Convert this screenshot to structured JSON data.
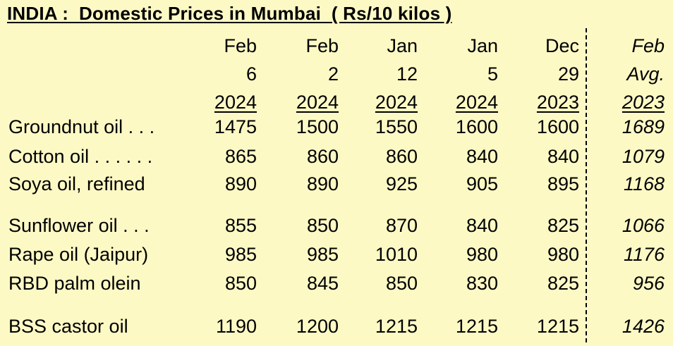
{
  "title": "INDIA :  Domestic Prices in Mumbai  ( Rs/10 kilos )",
  "columns": [
    {
      "l1": "Feb",
      "l2": "6",
      "l3": "2024"
    },
    {
      "l1": "Feb",
      "l2": "2",
      "l3": "2024"
    },
    {
      "l1": "Jan",
      "l2": "12",
      "l3": "2024"
    },
    {
      "l1": "Jan",
      "l2": "5",
      "l3": "2024"
    },
    {
      "l1": "Dec",
      "l2": "29",
      "l3": "2023"
    },
    {
      "l1": "Feb",
      "l2": "Avg.",
      "l3": "2023"
    }
  ],
  "rows": [
    {
      "label": "Groundnut oil . . .",
      "values": [
        "1475",
        "1500",
        "1550",
        "1600",
        "1600",
        "1689"
      ]
    },
    {
      "label": "Cotton oil . . . . . .",
      "values": [
        "865",
        "860",
        "860",
        "840",
        "840",
        "1079"
      ]
    },
    {
      "label": "Soya oil, refined",
      "values": [
        "890",
        "890",
        "925",
        "905",
        "895",
        "1168"
      ]
    },
    {
      "label": "Sunflower oil . . .",
      "values": [
        "855",
        "850",
        "870",
        "840",
        "825",
        "1066"
      ]
    },
    {
      "label": "Rape oil (Jaipur)",
      "values": [
        "985",
        "985",
        "1010",
        "980",
        "980",
        "1176"
      ]
    },
    {
      "label": "RBD palm olein",
      "values": [
        "850",
        "845",
        "850",
        "830",
        "825",
        "956"
      ]
    },
    {
      "label": "BSS castor oil",
      "values": [
        "1190",
        "1200",
        "1215",
        "1215",
        "1215",
        "1426"
      ]
    }
  ],
  "colors": {
    "background": "#fdf9c5",
    "text": "#000000"
  }
}
